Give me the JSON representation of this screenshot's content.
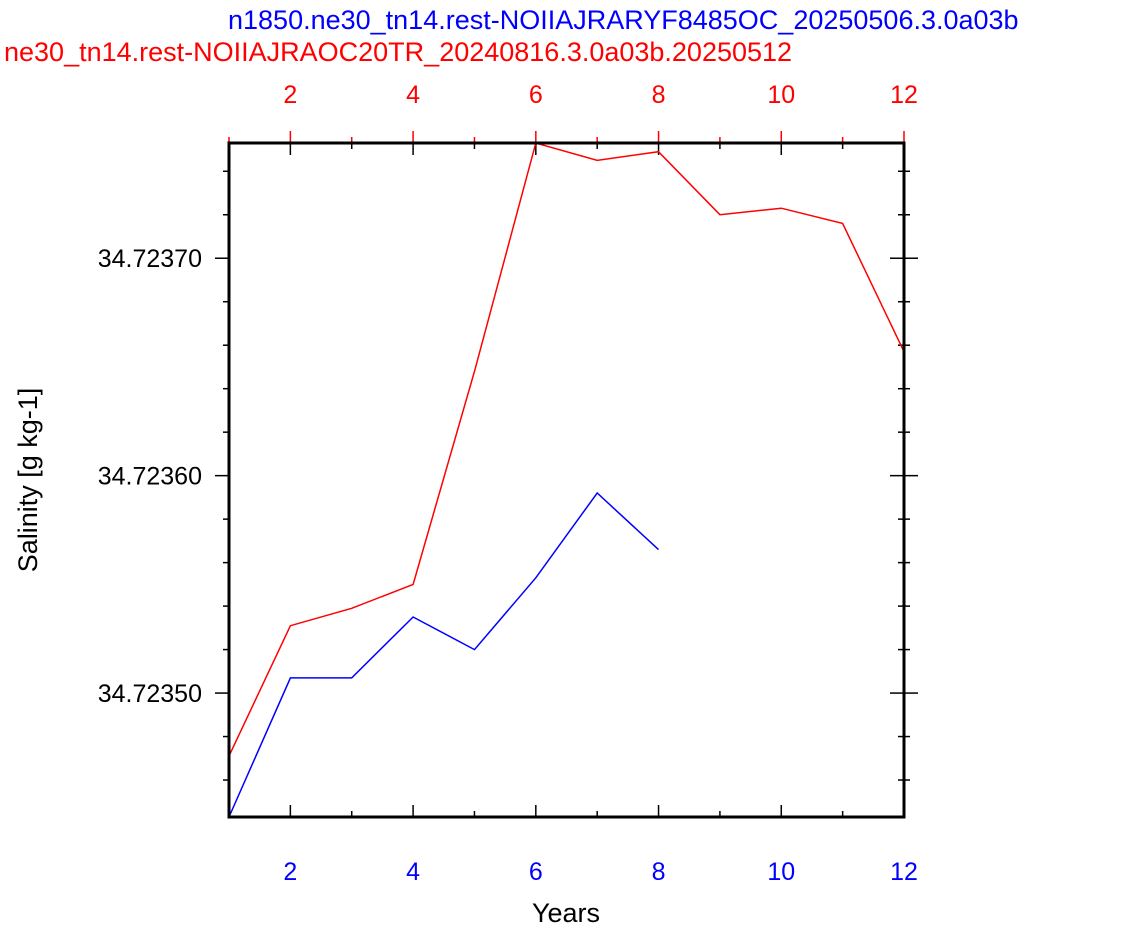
{
  "chart_data": {
    "type": "line",
    "title_blue": "n1850.ne30_tn14.rest-NOIIAJRARYF8485OC_20250506.3.0a03b",
    "title_red": "ne30_tn14.rest-NOIIAJRAOC20TR_20240816.3.0a03b.20250512",
    "xlabel": "Years",
    "ylabel": "Salinity [g kg-1]",
    "bottom_axis": {
      "color": "#0000ff",
      "xlim": [
        1,
        12
      ],
      "ticks": [
        2,
        4,
        6,
        8,
        10,
        12
      ],
      "tick_labels": [
        "2",
        "4",
        "6",
        "8",
        "10",
        "12"
      ]
    },
    "top_axis": {
      "color": "#ff0000",
      "xlim": [
        1,
        12
      ],
      "ticks": [
        2,
        4,
        6,
        8,
        10,
        12
      ],
      "tick_labels": [
        "2",
        "4",
        "6",
        "8",
        "10",
        "12"
      ]
    },
    "ylim": [
      34.723443,
      34.723753
    ],
    "yticks": [
      34.7235,
      34.7236,
      34.7237
    ],
    "ytick_labels": [
      "34.72350",
      "34.72360",
      "34.72370"
    ],
    "grid": false,
    "series": [
      {
        "color": "#0000ff",
        "x": [
          1,
          2,
          3,
          4,
          5,
          6,
          7,
          8
        ],
        "y": [
          34.723443,
          34.723507,
          34.723507,
          34.723535,
          34.72352,
          34.723553,
          34.723592,
          34.723566
        ]
      },
      {
        "color": "#ff0000",
        "x": [
          1,
          2,
          3,
          4,
          5,
          6,
          7,
          8,
          9,
          10,
          11,
          12
        ],
        "y": [
          34.723471,
          34.723531,
          34.723539,
          34.72355,
          34.723648,
          34.723753,
          34.723745,
          34.723749,
          34.72372,
          34.723723,
          34.723716,
          34.723657
        ]
      }
    ]
  }
}
